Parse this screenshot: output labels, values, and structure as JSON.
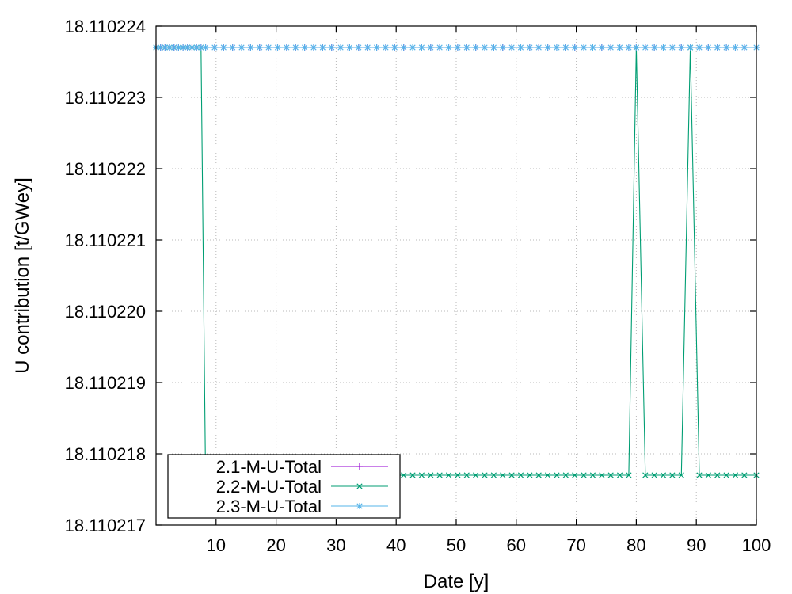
{
  "chart_data": {
    "type": "line",
    "xlabel": "Date [y]",
    "ylabel": "U contribution [t/GWey]",
    "xlim": [
      0,
      100
    ],
    "ylim": [
      18.110217,
      18.110224
    ],
    "xticks": [
      10,
      20,
      30,
      40,
      50,
      60,
      70,
      80,
      90,
      100
    ],
    "xtick_labels": [
      "10",
      "20",
      "30",
      "40",
      "50",
      "60",
      "70",
      "80",
      "90",
      "100"
    ],
    "yticks": [
      18.110217,
      18.110218,
      18.110219,
      18.11022,
      18.110221,
      18.110222,
      18.110223,
      18.110224
    ],
    "ytick_labels": [
      "18.110217",
      "18.110218",
      "18.110219",
      "18.110220",
      "18.110221",
      "18.110222",
      "18.110223",
      "18.110224"
    ],
    "grid": true,
    "legend_position": "bottom-left",
    "x": [
      0,
      0.75,
      1.5,
      2.25,
      3,
      3.75,
      4.5,
      5.25,
      6,
      6.75,
      7.5,
      8.25,
      9.75,
      11.25,
      12.75,
      14.25,
      15.75,
      17.25,
      18.75,
      20.25,
      21.75,
      23.25,
      24.75,
      26.25,
      27.75,
      29.25,
      30.75,
      32.25,
      33.75,
      35.25,
      36.75,
      38.25,
      39.75,
      41.25,
      42.75,
      44.25,
      45.75,
      47.25,
      48.75,
      50.25,
      51.75,
      53.25,
      54.75,
      56.25,
      57.75,
      59.25,
      60.75,
      62.25,
      63.75,
      65.25,
      66.75,
      68.25,
      69.75,
      71.25,
      72.75,
      74.25,
      75.75,
      77.25,
      78.75,
      80,
      81.5,
      83,
      84.5,
      86,
      87.5,
      89,
      90.5,
      92,
      93.5,
      95,
      96.5,
      98,
      100
    ],
    "series": [
      {
        "name": "2.1-M-U-Total",
        "color": "#9400d3",
        "marker": "plus",
        "values": [
          18.1102237,
          18.1102237,
          18.1102237,
          18.1102237,
          18.1102237,
          18.1102237,
          18.1102237,
          18.1102237,
          18.1102237,
          18.1102237,
          18.1102237,
          18.1102237,
          18.1102237,
          18.1102237,
          18.1102237,
          18.1102237,
          18.1102237,
          18.1102237,
          18.1102237,
          18.1102237,
          18.1102237,
          18.1102237,
          18.1102237,
          18.1102237,
          18.1102237,
          18.1102237,
          18.1102237,
          18.1102237,
          18.1102237,
          18.1102237,
          18.1102237,
          18.1102237,
          18.1102237,
          18.1102237,
          18.1102237,
          18.1102237,
          18.1102237,
          18.1102237,
          18.1102237,
          18.1102237,
          18.1102237,
          18.1102237,
          18.1102237,
          18.1102237,
          18.1102237,
          18.1102237,
          18.1102237,
          18.1102237,
          18.1102237,
          18.1102237,
          18.1102237,
          18.1102237,
          18.1102237,
          18.1102237,
          18.1102237,
          18.1102237,
          18.1102237,
          18.1102237,
          18.1102237,
          18.1102237,
          18.1102237,
          18.1102237,
          18.1102237,
          18.1102237,
          18.1102237,
          18.1102237,
          18.1102237,
          18.1102237,
          18.1102237,
          18.1102237,
          18.1102237,
          18.1102237,
          18.1102237
        ]
      },
      {
        "name": "2.2-M-U-Total",
        "color": "#009e73",
        "marker": "x",
        "values": [
          18.1102237,
          18.1102237,
          18.1102237,
          18.1102237,
          18.1102237,
          18.1102237,
          18.1102237,
          18.1102237,
          18.1102237,
          18.1102237,
          18.1102237,
          18.1102177,
          18.1102177,
          18.1102177,
          18.1102177,
          18.1102177,
          18.1102177,
          18.1102177,
          18.1102177,
          18.1102177,
          18.1102177,
          18.1102177,
          18.1102177,
          18.1102177,
          18.1102177,
          18.1102177,
          18.1102177,
          18.1102177,
          18.1102177,
          18.1102177,
          18.1102177,
          18.1102177,
          18.1102177,
          18.1102177,
          18.1102177,
          18.1102177,
          18.1102177,
          18.1102177,
          18.1102177,
          18.1102177,
          18.1102177,
          18.1102177,
          18.1102177,
          18.1102177,
          18.1102177,
          18.1102177,
          18.1102177,
          18.1102177,
          18.1102177,
          18.1102177,
          18.1102177,
          18.1102177,
          18.1102177,
          18.1102177,
          18.1102177,
          18.1102177,
          18.1102177,
          18.1102177,
          18.1102177,
          18.1102237,
          18.1102177,
          18.1102177,
          18.1102177,
          18.1102177,
          18.1102177,
          18.1102237,
          18.1102177,
          18.1102177,
          18.1102177,
          18.1102177,
          18.1102177,
          18.1102177,
          18.1102177
        ]
      },
      {
        "name": "2.3-M-U-Total",
        "color": "#56b4e9",
        "marker": "star",
        "values": [
          18.1102237,
          18.1102237,
          18.1102237,
          18.1102237,
          18.1102237,
          18.1102237,
          18.1102237,
          18.1102237,
          18.1102237,
          18.1102237,
          18.1102237,
          18.1102237,
          18.1102237,
          18.1102237,
          18.1102237,
          18.1102237,
          18.1102237,
          18.1102237,
          18.1102237,
          18.1102237,
          18.1102237,
          18.1102237,
          18.1102237,
          18.1102237,
          18.1102237,
          18.1102237,
          18.1102237,
          18.1102237,
          18.1102237,
          18.1102237,
          18.1102237,
          18.1102237,
          18.1102237,
          18.1102237,
          18.1102237,
          18.1102237,
          18.1102237,
          18.1102237,
          18.1102237,
          18.1102237,
          18.1102237,
          18.1102237,
          18.1102237,
          18.1102237,
          18.1102237,
          18.1102237,
          18.1102237,
          18.1102237,
          18.1102237,
          18.1102237,
          18.1102237,
          18.1102237,
          18.1102237,
          18.1102237,
          18.1102237,
          18.1102237,
          18.1102237,
          18.1102237,
          18.1102237,
          18.1102237,
          18.1102237,
          18.1102237,
          18.1102237,
          18.1102237,
          18.1102237,
          18.1102237,
          18.1102237,
          18.1102237,
          18.1102237,
          18.1102237,
          18.1102237,
          18.1102237,
          18.1102237
        ]
      }
    ]
  }
}
